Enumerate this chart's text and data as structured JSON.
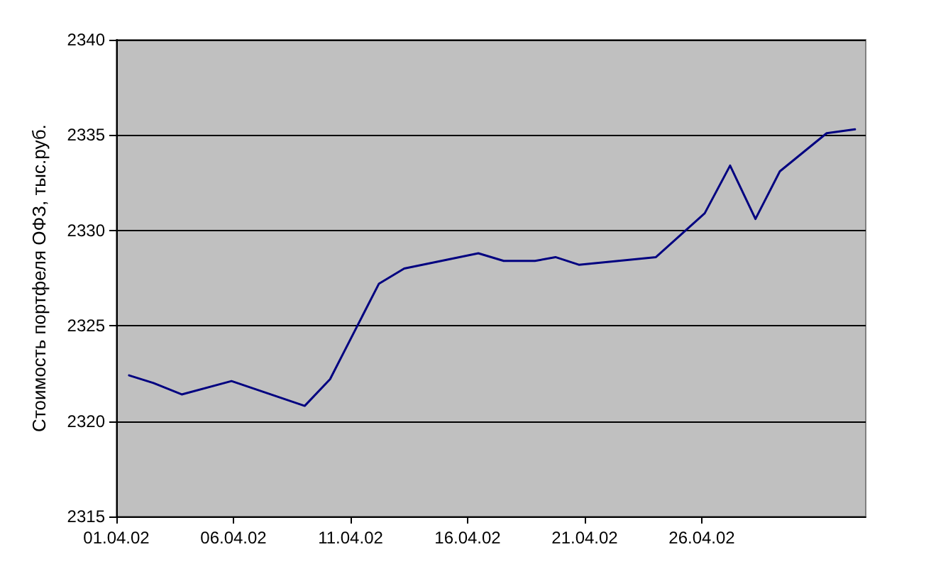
{
  "chart_data": {
    "type": "line",
    "ylabel": "Стоимость портфеля ОФЗ, тыс.руб.",
    "x": [
      "--04-01T13:00",
      "--04-02T14:00",
      "--04-03T19:00",
      "--04-05T22:00",
      "--04-09T01:00",
      "--04-10T03:00",
      "--04-12T05:00",
      "--04-13T07:00",
      "--04-16T11:00",
      "--04-17T13:00",
      "--04-18T21:00",
      "--04-19T18:00",
      "--04-20T18:00",
      "--04-24T01:00",
      "--04-26T03:00",
      "--04-27T05:00",
      "--04-28T07:00",
      "--04-29T08:00",
      "--05-01T08:00",
      "--05-02T13:00"
    ],
    "series": [
      {
        "color": "#000080",
        "values": [
          2322.4,
          2322.0,
          2321.4,
          2322.1,
          2320.8,
          2322.2,
          2327.2,
          2328.0,
          2328.8,
          2328.4,
          2328.4,
          2328.6,
          2328.2,
          2328.6,
          2330.9,
          2333.4,
          2330.6,
          2333.1,
          2335.1,
          2335.3
        ]
      }
    ],
    "xlim": [
      "--04-01",
      "--05-03"
    ],
    "xticks": [
      {
        "value": "--04-01",
        "label": "01.04.02"
      },
      {
        "value": "--04-06",
        "label": "06.04.02"
      },
      {
        "value": "--04-11",
        "label": "11.04.02"
      },
      {
        "value": "--04-16",
        "label": "16.04.02"
      },
      {
        "value": "--04-21",
        "label": "21.04.02"
      },
      {
        "value": "--04-26",
        "label": "26.04.02"
      }
    ],
    "ylim": [
      2315,
      2340
    ],
    "yticks": [
      2315,
      2320,
      2325,
      2330,
      2335,
      2340
    ],
    "grid": "y",
    "marker": "none",
    "line_style": "solid"
  }
}
